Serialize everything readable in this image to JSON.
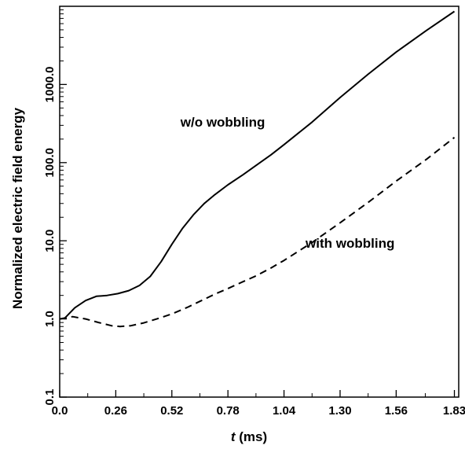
{
  "chart_data": {
    "type": "line",
    "title": "",
    "xlabel_var": "t",
    "xlabel_unit": " (ms)",
    "ylabel": "Normalized electric field energy",
    "xscale": "linear",
    "yscale": "log",
    "xlim": [
      0.0,
      1.85
    ],
    "ylim": [
      0.1,
      10000
    ],
    "grid": false,
    "legend": "none",
    "x_ticks": [
      "0.0",
      "0.26",
      "0.52",
      "0.78",
      "1.04",
      "1.30",
      "1.56",
      "1.83"
    ],
    "x_tick_values": [
      0.0,
      0.26,
      0.52,
      0.78,
      1.04,
      1.3,
      1.56,
      1.83
    ],
    "y_ticks": [
      "0.1",
      "1.0",
      "10.0",
      "100.0",
      "1000.0"
    ],
    "y_tick_values": [
      0.1,
      1,
      10,
      100,
      1000
    ],
    "series": [
      {
        "name": "w/o wobbling",
        "style": "solid",
        "color": "#000000",
        "x": [
          0.02,
          0.07,
          0.12,
          0.17,
          0.22,
          0.27,
          0.32,
          0.37,
          0.42,
          0.47,
          0.52,
          0.57,
          0.62,
          0.67,
          0.72,
          0.78,
          0.85,
          0.91,
          0.98,
          1.04,
          1.17,
          1.3,
          1.43,
          1.56,
          1.7,
          1.83
        ],
        "y": [
          1.0,
          1.39,
          1.72,
          1.95,
          2.0,
          2.11,
          2.3,
          2.68,
          3.5,
          5.4,
          9.0,
          14.5,
          21.5,
          30,
          39,
          52,
          70,
          92,
          126,
          170,
          330,
          680,
          1350,
          2600,
          4900,
          8600
        ]
      },
      {
        "name": "with wobbling",
        "style": "dashed",
        "color": "#000000",
        "x": [
          0.0,
          0.06,
          0.12,
          0.18,
          0.24,
          0.28,
          0.33,
          0.39,
          0.45,
          0.52,
          0.59,
          0.65,
          0.72,
          0.78,
          0.85,
          0.91,
          0.98,
          1.04,
          1.17,
          1.3,
          1.43,
          1.56,
          1.7,
          1.83
        ],
        "y": [
          1.0,
          1.07,
          1.0,
          0.9,
          0.82,
          0.8,
          0.82,
          0.89,
          1.0,
          1.16,
          1.4,
          1.68,
          2.08,
          2.45,
          3.0,
          3.55,
          4.5,
          5.6,
          9.5,
          17,
          31,
          58,
          110,
          210
        ]
      }
    ],
    "annotations": [
      {
        "text": "w/o wobbling",
        "x": 0.56,
        "y": 290
      },
      {
        "text": "with wobbling",
        "x": 1.14,
        "y": 8.2
      }
    ]
  }
}
